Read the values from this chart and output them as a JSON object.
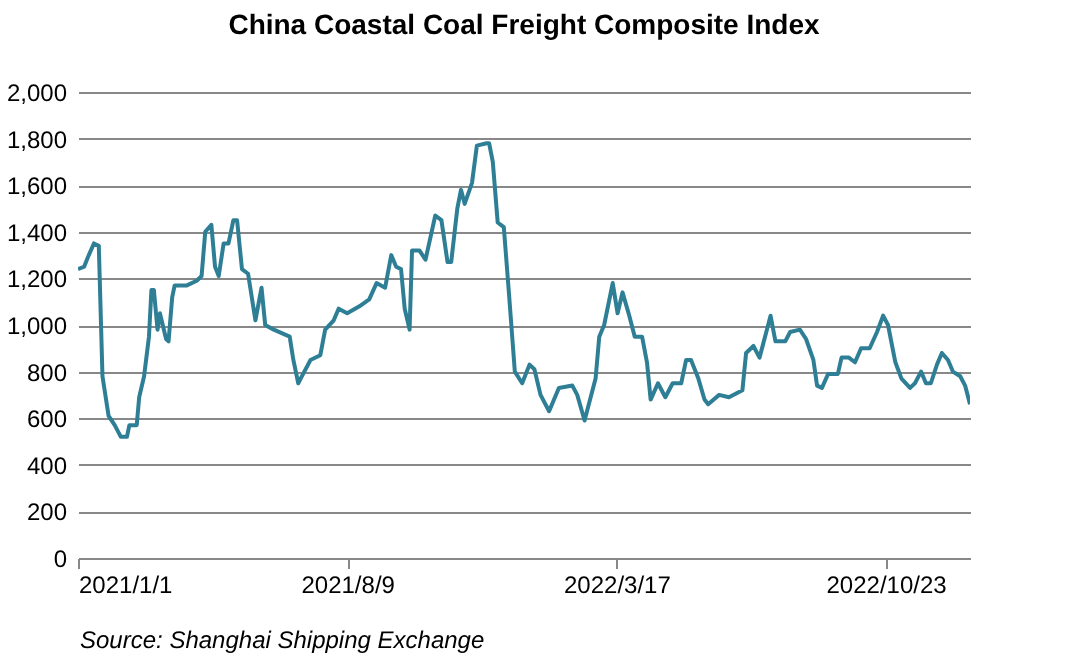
{
  "chart_data": {
    "type": "line",
    "title": "China Coastal Coal Freight Composite Index",
    "annotations": [
      "Source: Shanghai Shipping Exchange"
    ],
    "x": [
      "2021-01-01",
      "2021-01-06",
      "2021-01-09",
      "2021-01-14",
      "2021-01-18",
      "2021-01-21",
      "2021-01-26",
      "2021-01-31",
      "2021-02-05",
      "2021-02-10",
      "2021-02-12",
      "2021-02-18",
      "2021-02-20",
      "2021-02-24",
      "2021-02-28",
      "2021-03-02",
      "2021-03-04",
      "2021-03-07",
      "2021-03-09",
      "2021-03-14",
      "2021-03-16",
      "2021-03-19",
      "2021-03-21",
      "2021-03-31",
      "2021-04-08",
      "2021-04-12",
      "2021-04-15",
      "2021-04-20",
      "2021-04-23",
      "2021-04-26",
      "2021-04-30",
      "2021-05-04",
      "2021-05-08",
      "2021-05-11",
      "2021-05-15",
      "2021-05-20",
      "2021-05-26",
      "2021-05-31",
      "2021-06-03",
      "2021-06-10",
      "2021-06-23",
      "2021-06-26",
      "2021-06-30",
      "2021-07-04",
      "2021-07-10",
      "2021-07-18",
      "2021-07-22",
      "2021-07-29",
      "2021-08-02",
      "2021-08-09",
      "2021-08-19",
      "2021-08-27",
      "2021-09-02",
      "2021-09-09",
      "2021-09-14",
      "2021-09-18",
      "2021-09-22",
      "2021-09-25",
      "2021-09-29",
      "2021-10-01",
      "2021-10-07",
      "2021-10-12",
      "2021-10-20",
      "2021-10-25",
      "2021-10-30",
      "2021-11-02",
      "2021-11-07",
      "2021-11-10",
      "2021-11-13",
      "2021-11-19",
      "2021-11-23",
      "2021-12-01",
      "2021-12-03",
      "2021-12-06",
      "2021-12-10",
      "2021-12-15",
      "2021-12-19",
      "2021-12-24",
      "2021-12-30",
      "2022-01-05",
      "2022-01-09",
      "2022-01-14",
      "2022-01-21",
      "2022-01-29",
      "2022-02-09",
      "2022-02-13",
      "2022-02-19",
      "2022-02-28",
      "2022-03-03",
      "2022-03-07",
      "2022-03-14",
      "2022-03-18",
      "2022-03-22",
      "2022-03-27",
      "2022-04-01",
      "2022-04-07",
      "2022-04-11",
      "2022-04-14",
      "2022-04-20",
      "2022-04-26",
      "2022-05-02",
      "2022-05-09",
      "2022-05-13",
      "2022-05-17",
      "2022-05-23",
      "2022-05-28",
      "2022-05-31",
      "2022-06-09",
      "2022-06-17",
      "2022-06-28",
      "2022-07-01",
      "2022-07-07",
      "2022-07-12",
      "2022-07-18",
      "2022-07-21",
      "2022-07-25",
      "2022-08-02",
      "2022-08-06",
      "2022-08-14",
      "2022-08-19",
      "2022-08-25",
      "2022-08-28",
      "2022-09-01",
      "2022-09-06",
      "2022-09-14",
      "2022-09-17",
      "2022-09-23",
      "2022-09-28",
      "2022-10-03",
      "2022-10-10",
      "2022-10-16",
      "2022-10-21",
      "2022-10-25",
      "2022-10-31",
      "2022-11-05",
      "2022-11-12",
      "2022-11-16",
      "2022-11-21",
      "2022-11-25",
      "2022-11-29",
      "2022-12-04",
      "2022-12-08",
      "2022-12-13",
      "2022-12-17",
      "2022-12-23",
      "2022-12-27",
      "2022-12-31"
    ],
    "series": [
      {
        "color": "#2e7f96",
        "values": [
          1240,
          1250,
          1290,
          1350,
          1340,
          780,
          610,
          570,
          520,
          520,
          570,
          570,
          690,
          780,
          950,
          1150,
          1150,
          980,
          1050,
          940,
          930,
          1120,
          1170,
          1170,
          1190,
          1210,
          1400,
          1430,
          1250,
          1210,
          1350,
          1350,
          1450,
          1450,
          1240,
          1220,
          1020,
          1160,
          1000,
          980,
          950,
          850,
          750,
          790,
          850,
          870,
          980,
          1020,
          1070,
          1050,
          1080,
          1110,
          1180,
          1160,
          1300,
          1250,
          1240,
          1070,
          980,
          1320,
          1320,
          1280,
          1470,
          1450,
          1270,
          1270,
          1500,
          1580,
          1520,
          1610,
          1770,
          1780,
          1780,
          1700,
          1440,
          1420,
          1150,
          800,
          750,
          830,
          810,
          700,
          630,
          730,
          740,
          700,
          590,
          770,
          950,
          1000,
          1180,
          1050,
          1140,
          1050,
          950,
          950,
          840,
          680,
          750,
          690,
          750,
          750,
          850,
          850,
          770,
          680,
          660,
          700,
          690,
          720,
          880,
          910,
          860,
          980,
          1040,
          930,
          930,
          970,
          980,
          940,
          850,
          740,
          730,
          790,
          790,
          860,
          860,
          840,
          900,
          900,
          970,
          1040,
          1000,
          840,
          770,
          730,
          750,
          800,
          750,
          750,
          830,
          880,
          850,
          800,
          780,
          740,
          660
        ]
      }
    ],
    "xlim": [
      "2021-01-01",
      "2022-12-31"
    ],
    "xticks": [
      {
        "value": "2021-01-01",
        "label": "2021/1/1"
      },
      {
        "value": "2021-08-09",
        "label": "2021/8/9"
      },
      {
        "value": "2022-03-17",
        "label": "2022/3/17"
      },
      {
        "value": "2022-10-23",
        "label": "2022/10/23"
      }
    ],
    "ylim": [
      0,
      2000
    ],
    "yticks": [
      0,
      {
        "value": 200,
        "label": "200"
      },
      {
        "value": 400,
        "label": "400"
      },
      {
        "value": 600,
        "label": "600"
      },
      {
        "value": 800,
        "label": "800"
      },
      {
        "value": 1000,
        "label": "1,000"
      },
      {
        "value": 1200,
        "label": "1,200"
      },
      {
        "value": 1400,
        "label": "1,400"
      },
      {
        "value": 1600,
        "label": "1,600"
      },
      {
        "value": 1800,
        "label": "1,800"
      },
      {
        "value": 2000,
        "label": "2,000"
      }
    ],
    "grid": "y",
    "marker": "none",
    "line_style": "solid"
  }
}
